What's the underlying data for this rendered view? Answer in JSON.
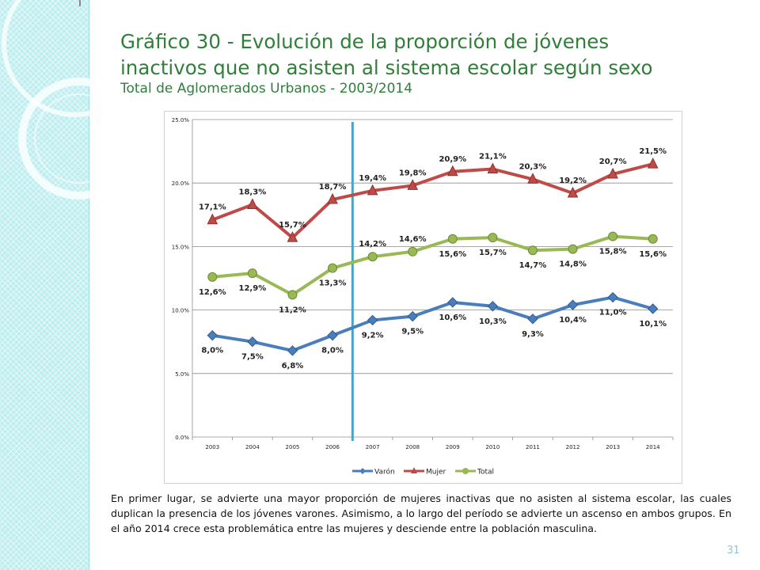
{
  "slide": {
    "title_line1": "Gráfico 30 - Evolución de la proporción de jóvenes",
    "title_line2": "inactivos que no asisten al sistema escolar según sexo",
    "subtitle": "Total de Aglomerados Urbanos - 2003/2014",
    "paragraph": "En primer lugar, se advierte una mayor proporción de mujeres inactivas que no asisten al sistema escolar, las cuales duplican la presencia de los jóvenes varones.  Asimismo, a lo largo del período se advierte un ascenso en ambos grupos. En el año 2014 crece esta problemática entre las mujeres y desciende entre la población masculina.",
    "page_number": "31"
  },
  "chart_data": {
    "type": "line",
    "categories": [
      "2003",
      "2004",
      "2005",
      "2006",
      "2007",
      "2008",
      "2009",
      "2010",
      "2011",
      "2012",
      "2013",
      "2014"
    ],
    "ylim": [
      0,
      25
    ],
    "y_ticks": [
      "0.0%",
      "5.0%",
      "10.0%",
      "15.0%",
      "20.0%",
      "25.0%"
    ],
    "grid": true,
    "legend_position": "bottom",
    "reference_line_between": [
      "2006",
      "2007"
    ],
    "series": [
      {
        "name": "Varón",
        "color": "#4a7ebb",
        "marker": "diamond",
        "values": [
          8.0,
          7.5,
          6.8,
          8.0,
          9.2,
          9.5,
          10.6,
          10.3,
          9.3,
          10.4,
          11.0,
          10.1
        ],
        "labels": [
          "8,0%",
          "7,5%",
          "6,8%",
          "8,0%",
          "9,2%",
          "9,5%",
          "10,6%",
          "10,3%",
          "9,3%",
          "10,4%",
          "11,0%",
          "10,1%"
        ]
      },
      {
        "name": "Mujer",
        "color": "#be4b48",
        "marker": "triangle",
        "values": [
          17.1,
          18.3,
          15.7,
          18.7,
          19.4,
          19.8,
          20.9,
          21.1,
          20.3,
          19.2,
          20.7,
          21.5
        ],
        "labels": [
          "17,1%",
          "18,3%",
          "15,7%",
          "18,7%",
          "19,4%",
          "19,8%",
          "20,9%",
          "21,1%",
          "20,3%",
          "19,2%",
          "20,7%",
          "21,5%"
        ]
      },
      {
        "name": "Total",
        "color": "#98b954",
        "marker": "circle",
        "values": [
          12.6,
          12.9,
          11.2,
          13.3,
          14.2,
          14.6,
          15.6,
          15.7,
          14.7,
          14.8,
          15.8,
          15.6
        ],
        "labels": [
          "12,6%",
          "12,9%",
          "11,2%",
          "13,3%",
          "14,2%",
          "14,6%",
          "15,6%",
          "15,7%",
          "14,7%",
          "14,8%",
          "15,8%",
          "15,6%"
        ]
      }
    ],
    "colors": {
      "reference_line": "#4ba3c7",
      "grid": "#8c8c8c"
    }
  }
}
